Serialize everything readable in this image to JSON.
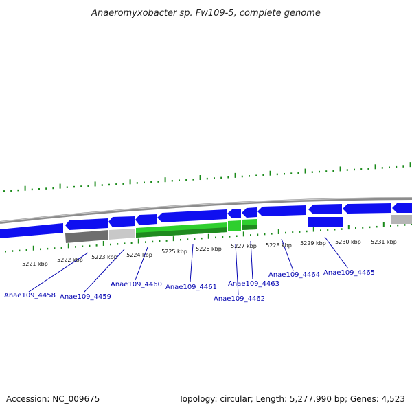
{
  "title": "Anaeromyxobacter sp. Fw109-5, complete genome",
  "colors": {
    "forward_gene": "#0f0ff0",
    "highlight_gene": "#2ecf2e",
    "grey_feature": "#9a9a9a",
    "light_grey_feature": "#c8c8c8",
    "tick": "#1a8a1a",
    "label": "#0000b0",
    "backbone": "#8c8c8c"
  },
  "kbp_labels": [
    "5221 kbp",
    "5222 kbp",
    "5223 kbp",
    "5224 kbp",
    "5225 kbp",
    "5226 kbp",
    "5227 kbp",
    "5228 kbp",
    "5229 kbp",
    "5230 kbp",
    "5231 kbp"
  ],
  "gene_labels": [
    "Anae109_4458",
    "Anae109_4459",
    "Anae109_4460",
    "Anae109_4461",
    "Anae109_4462",
    "Anae109_4463",
    "Anae109_4464",
    "Anae109_4465"
  ],
  "footer": {
    "accession": "Accession: NC_009675",
    "topology": "Topology: circular; Length: 5,277,990 bp; Genes: 4,523"
  }
}
